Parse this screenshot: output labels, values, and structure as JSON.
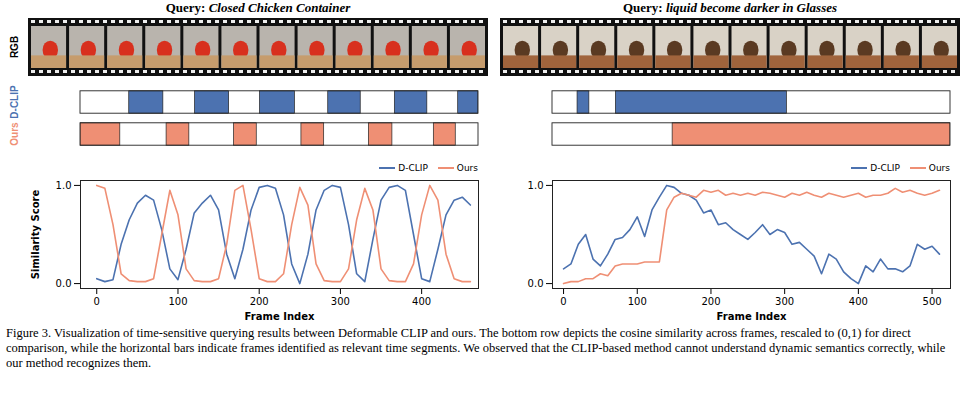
{
  "figure": {
    "caption": "Figure 3. Visualization of time-sensitive querying results between Deformable CLIP and ours. The bottom row depicts the cosine similarity across frames, rescaled to (0,1) for direct comparison, while the horizontal bars indicate frames identified as relevant time segments. We observed that the CLIP-based method cannot understand dynamic semantics correctly, while our method recognizes them.",
    "row_labels": [
      "RGB",
      "D-CLIP",
      "Ours"
    ]
  },
  "chart_data": [
    {
      "type": "line",
      "title": "Query: Closed Chicken Container",
      "x_label": "Frame Index",
      "y_label": "Similarity Score",
      "x": [
        0,
        10,
        20,
        30,
        40,
        50,
        60,
        70,
        80,
        90,
        100,
        110,
        120,
        130,
        140,
        150,
        160,
        170,
        180,
        190,
        200,
        210,
        220,
        230,
        240,
        250,
        260,
        270,
        280,
        290,
        300,
        310,
        320,
        330,
        340,
        350,
        360,
        370,
        380,
        390,
        400,
        410,
        420,
        430,
        440,
        450,
        460
      ],
      "series": [
        {
          "name": "D-CLIP",
          "color": "#4c72b0",
          "values": [
            0.05,
            0.02,
            0.04,
            0.4,
            0.65,
            0.82,
            0.9,
            0.85,
            0.55,
            0.15,
            0.04,
            0.35,
            0.72,
            0.82,
            0.9,
            0.75,
            0.3,
            0.05,
            0.35,
            0.75,
            0.98,
            1.0,
            0.97,
            0.7,
            0.2,
            0.0,
            0.3,
            0.75,
            0.95,
            1.0,
            0.98,
            0.6,
            0.1,
            0.02,
            0.45,
            0.85,
            0.98,
            1.0,
            0.95,
            0.5,
            0.05,
            0.02,
            0.35,
            0.7,
            0.85,
            0.88,
            0.8
          ],
          "segments": [
            [
              40,
              82
            ],
            [
              121,
              163
            ],
            [
              201,
              244
            ],
            [
              285,
              325
            ],
            [
              367,
              407
            ],
            [
              445,
              470
            ]
          ]
        },
        {
          "name": "Ours",
          "color": "#ef8f74",
          "values": [
            1.0,
            0.97,
            0.6,
            0.1,
            0.03,
            0.02,
            0.02,
            0.05,
            0.5,
            0.95,
            0.7,
            0.15,
            0.03,
            0.02,
            0.02,
            0.05,
            0.4,
            0.95,
            1.0,
            0.55,
            0.05,
            0.02,
            0.02,
            0.1,
            0.6,
            0.98,
            0.8,
            0.2,
            0.03,
            0.02,
            0.02,
            0.15,
            0.65,
            0.97,
            0.75,
            0.15,
            0.03,
            0.02,
            0.02,
            0.2,
            0.7,
            1.0,
            0.85,
            0.3,
            0.05,
            0.02,
            0.02
          ],
          "segments": [
            [
              -20,
              29
            ],
            [
              86,
              114
            ],
            [
              169,
              197
            ],
            [
              252,
              280
            ],
            [
              335,
              364
            ],
            [
              415,
              442
            ]
          ]
        }
      ],
      "xlim": [
        -20,
        470
      ],
      "xticks": [
        0,
        100,
        200,
        300,
        400
      ],
      "ylim": [
        -0.05,
        1.05
      ],
      "yticks": [
        {
          "value": 0,
          "label": "0.0"
        },
        {
          "value": 1,
          "label": "1.0"
        }
      ],
      "legend": "upper right"
    },
    {
      "type": "line",
      "title": "Query: liquid become darker in Glasses",
      "x_label": "Frame Index",
      "x": [
        0,
        10,
        20,
        30,
        40,
        50,
        60,
        70,
        80,
        90,
        100,
        110,
        120,
        130,
        140,
        150,
        160,
        170,
        180,
        190,
        200,
        210,
        220,
        230,
        240,
        250,
        260,
        270,
        280,
        290,
        300,
        310,
        320,
        330,
        340,
        350,
        360,
        370,
        380,
        390,
        400,
        410,
        420,
        430,
        440,
        450,
        460,
        470,
        480,
        490,
        500,
        510
      ],
      "series": [
        {
          "name": "D-CLIP",
          "color": "#4c72b0",
          "values": [
            0.15,
            0.2,
            0.4,
            0.5,
            0.25,
            0.18,
            0.3,
            0.45,
            0.47,
            0.55,
            0.68,
            0.48,
            0.75,
            0.88,
            1.0,
            0.98,
            0.92,
            0.9,
            0.85,
            0.72,
            0.75,
            0.6,
            0.62,
            0.55,
            0.5,
            0.45,
            0.52,
            0.6,
            0.5,
            0.55,
            0.52,
            0.4,
            0.42,
            0.35,
            0.28,
            0.1,
            0.3,
            0.25,
            0.12,
            0.05,
            0.0,
            0.18,
            0.12,
            0.25,
            0.15,
            0.15,
            0.12,
            0.18,
            0.4,
            0.35,
            0.38,
            0.3
          ],
          "segments": [
            [
              19,
              35
            ],
            [
              71,
              303
            ]
          ]
        },
        {
          "name": "Ours",
          "color": "#ef8f74",
          "values": [
            0.0,
            0.02,
            0.02,
            0.05,
            0.05,
            0.1,
            0.08,
            0.18,
            0.2,
            0.2,
            0.2,
            0.22,
            0.22,
            0.22,
            0.75,
            0.88,
            0.92,
            0.9,
            0.88,
            0.95,
            0.93,
            0.95,
            0.9,
            0.92,
            0.9,
            0.92,
            0.9,
            0.93,
            0.92,
            0.9,
            0.88,
            0.92,
            0.9,
            0.93,
            0.9,
            0.88,
            0.92,
            0.9,
            0.88,
            0.9,
            0.92,
            0.88,
            0.9,
            0.9,
            0.92,
            0.97,
            0.93,
            0.95,
            0.92,
            0.9,
            0.92,
            0.95
          ],
          "segments": [
            [
              148,
              525
            ]
          ]
        }
      ],
      "xlim": [
        -15,
        525
      ],
      "xticks": [
        0,
        100,
        200,
        300,
        400,
        500
      ],
      "ylim": [
        -0.05,
        1.05
      ],
      "yticks": [
        {
          "value": 0,
          "label": "0.0"
        },
        {
          "value": 1,
          "label": "1.0"
        }
      ],
      "legend": "upper right"
    }
  ]
}
